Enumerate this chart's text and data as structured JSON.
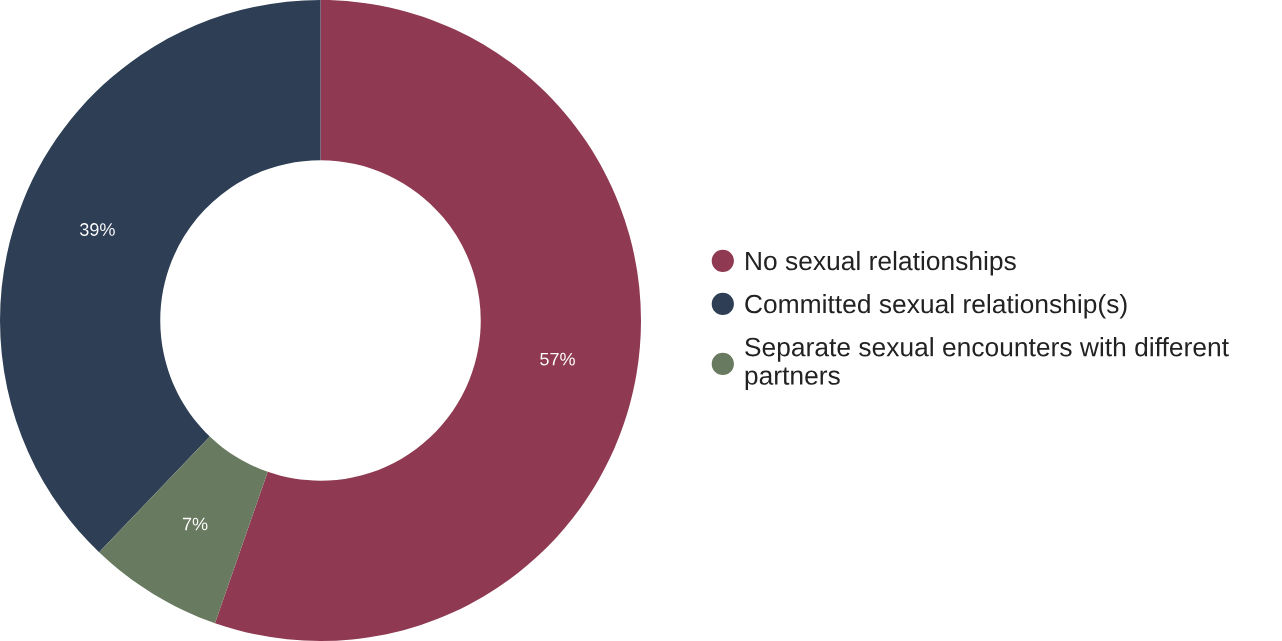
{
  "chart_data": {
    "type": "donut",
    "categories": [
      "No sexual relationships",
      "Committed sexual relationship(s)",
      "Separate sexual encounters with different partners"
    ],
    "values": [
      57,
      39,
      7
    ],
    "colors": [
      "#8f3a52",
      "#2d3e55",
      "#687a5f"
    ],
    "value_labels": [
      "57%",
      "39%",
      "7%"
    ],
    "legend": "right"
  }
}
